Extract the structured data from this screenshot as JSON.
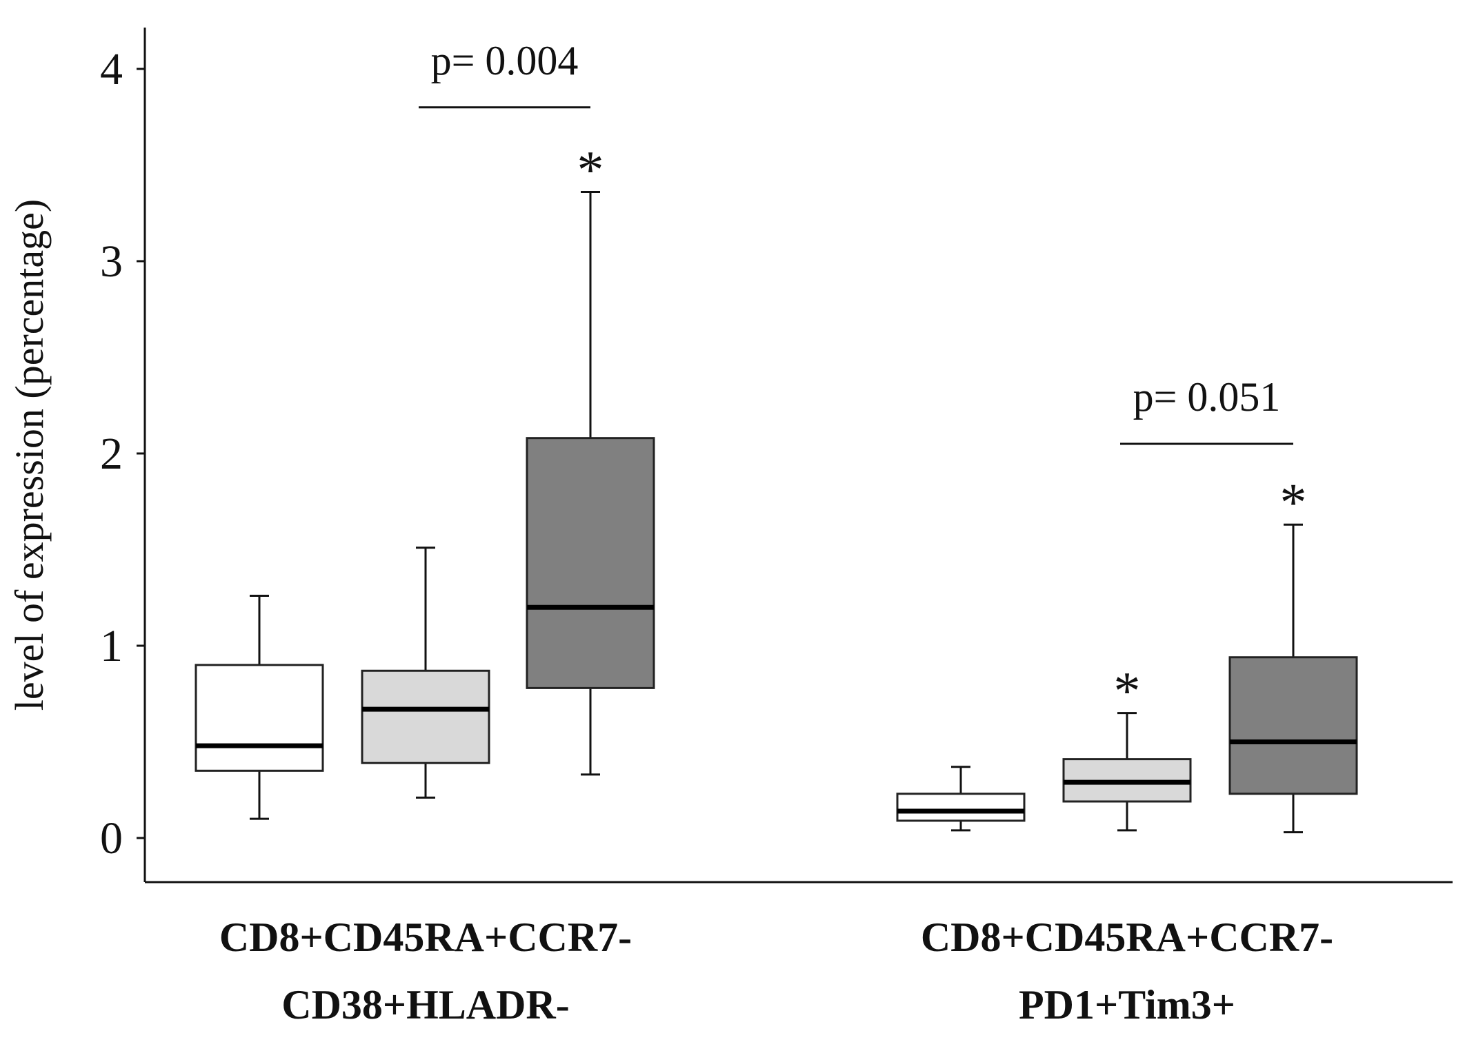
{
  "chart_data": {
    "type": "boxplot",
    "ylabel": "level of expression (percentage)",
    "ylim": [
      -0.2,
      4.2
    ],
    "yticks": [
      0,
      1,
      2,
      3,
      4
    ],
    "ytick_labels": [
      "0",
      "1",
      "2",
      "3",
      "4"
    ],
    "box_colors": [
      "#ffffff",
      "#d9d9d9",
      "#808080"
    ],
    "groups": [
      {
        "label_lines": [
          "CD8+CD45RA+CCR7-",
          "CD38+HLADR-"
        ],
        "boxes": [
          {
            "whisker_low": 0.1,
            "q1": 0.35,
            "median": 0.48,
            "q3": 0.9,
            "whisker_high": 1.26,
            "star": false
          },
          {
            "whisker_low": 0.21,
            "q1": 0.39,
            "median": 0.67,
            "q3": 0.87,
            "whisker_high": 1.51,
            "star": false
          },
          {
            "whisker_low": 0.33,
            "q1": 0.78,
            "median": 1.2,
            "q3": 2.08,
            "whisker_high": 3.36,
            "star": true,
            "star_text": "*"
          }
        ],
        "comparison": {
          "from_box": 1,
          "to_box": 2,
          "text": "p= 0.004",
          "y": 3.8
        }
      },
      {
        "label_lines": [
          "CD8+CD45RA+CCR7-",
          "PD1+Tim3+"
        ],
        "boxes": [
          {
            "whisker_low": 0.04,
            "q1": 0.09,
            "median": 0.14,
            "q3": 0.23,
            "whisker_high": 0.37,
            "star": false
          },
          {
            "whisker_low": 0.04,
            "q1": 0.19,
            "median": 0.29,
            "q3": 0.41,
            "whisker_high": 0.65,
            "star": true,
            "star_text": "*"
          },
          {
            "whisker_low": 0.03,
            "q1": 0.23,
            "median": 0.5,
            "q3": 0.94,
            "whisker_high": 1.63,
            "star": true,
            "star_text": "*"
          }
        ],
        "comparison": {
          "from_box": 1,
          "to_box": 2,
          "text": "p= 0.051",
          "y": 2.05
        }
      }
    ]
  }
}
